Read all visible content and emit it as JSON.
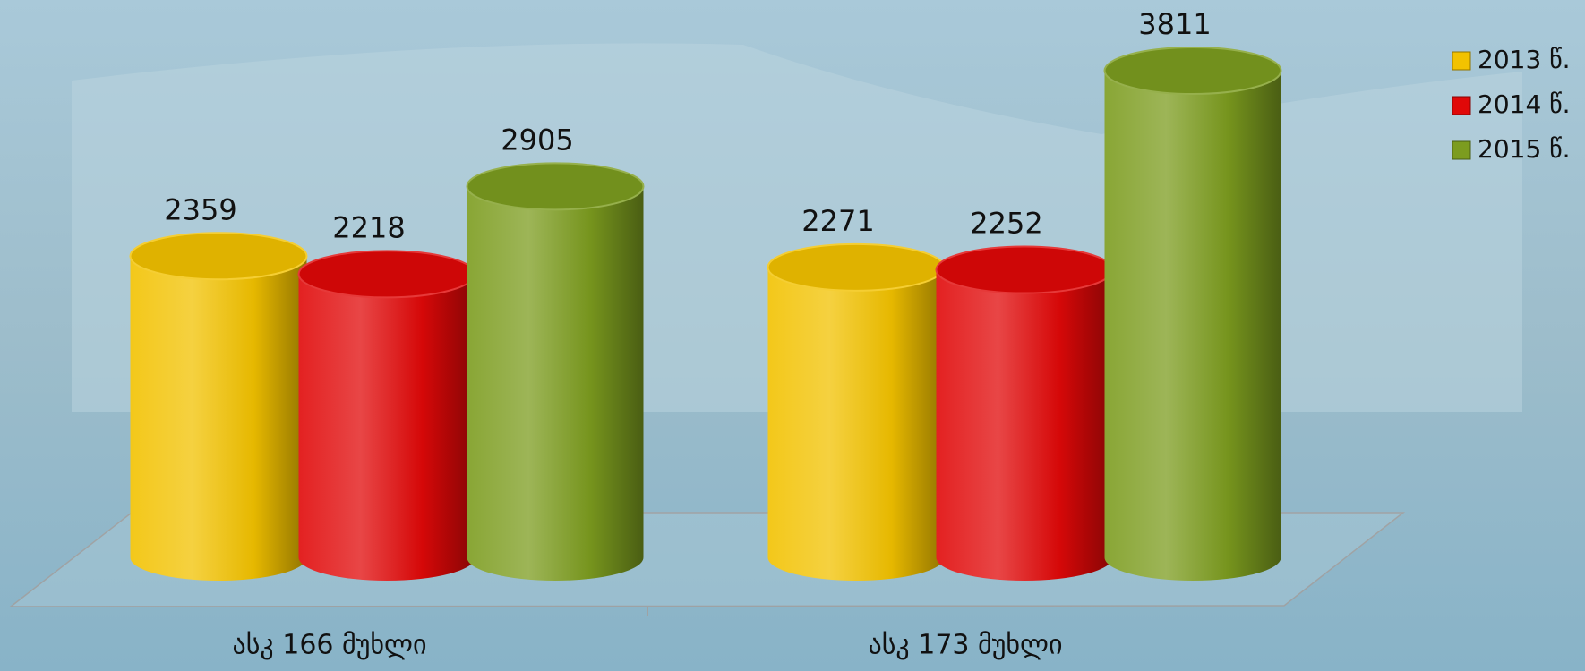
{
  "chart_data": {
    "type": "bar3d",
    "categories": [
      "ასკ 166 მუხლი",
      "ასკ 173 მუხლი"
    ],
    "series": [
      {
        "name": "2013 წ.",
        "color": "#f2c200",
        "values": [
          2359,
          2271
        ]
      },
      {
        "name": "2014 წ.",
        "color": "#e00808",
        "values": [
          2218,
          2252
        ]
      },
      {
        "name": "2015 წ.",
        "color": "#7c9c1f",
        "values": [
          2905,
          3811
        ]
      }
    ],
    "legend": "top-right"
  }
}
